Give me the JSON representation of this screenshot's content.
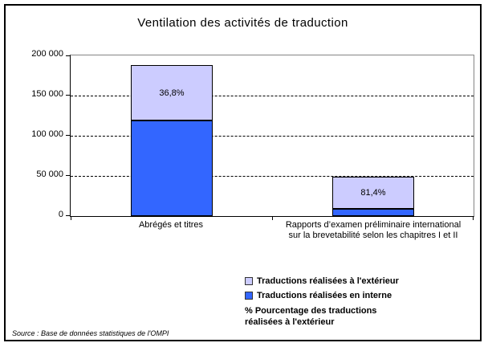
{
  "chart_data": {
    "type": "bar",
    "stacked": true,
    "title": "Ventilation des activités de traduction",
    "categories": [
      "Abrégés et titres",
      "Rapports d’examen préliminaire international sur la brevetabilité selon les chapitres I et II"
    ],
    "series": [
      {
        "name": "Traductions réalisées en interne",
        "color": "#3366FF",
        "values": [
          118800,
          9200
        ]
      },
      {
        "name": "Traductions réalisées à l'extérieur",
        "color": "#CCCCFF",
        "values": [
          69200,
          40200
        ]
      }
    ],
    "totals": [
      188000,
      49400
    ],
    "percent_labels": [
      "36,8%",
      "81,4%"
    ],
    "percent_labels_meaning": "% Pourcentage des traductions réalisées à l'extérieur",
    "ylim": [
      0,
      200000
    ],
    "yticks": [
      {
        "value": 0,
        "label": "0"
      },
      {
        "value": 50000,
        "label": "50 000"
      },
      {
        "value": 100000,
        "label": "100 000"
      },
      {
        "value": 150000,
        "label": "150 000"
      },
      {
        "value": 200000,
        "label": "200 000"
      }
    ],
    "grid": "horizontal-dashed",
    "legend_position": "bottom-right"
  },
  "legend": {
    "items": [
      {
        "label": "Traductions réalisées à l'extérieur",
        "swatch_color": "#CCCCFF"
      },
      {
        "label": "Traductions réalisées en interne",
        "swatch_color": "#3366FF"
      },
      {
        "label": "% Pourcentage des traductions réalisées à l'extérieur",
        "swatch_color": null
      }
    ]
  },
  "source_note": "Source : Base de données statistiques de l'OMPI",
  "colors": {
    "external_fill": "#CCCCFF",
    "internal_fill": "#3366FF",
    "plot_border_gray": "#848484",
    "axis_black": "#000000",
    "background": "#FFFFFF"
  }
}
